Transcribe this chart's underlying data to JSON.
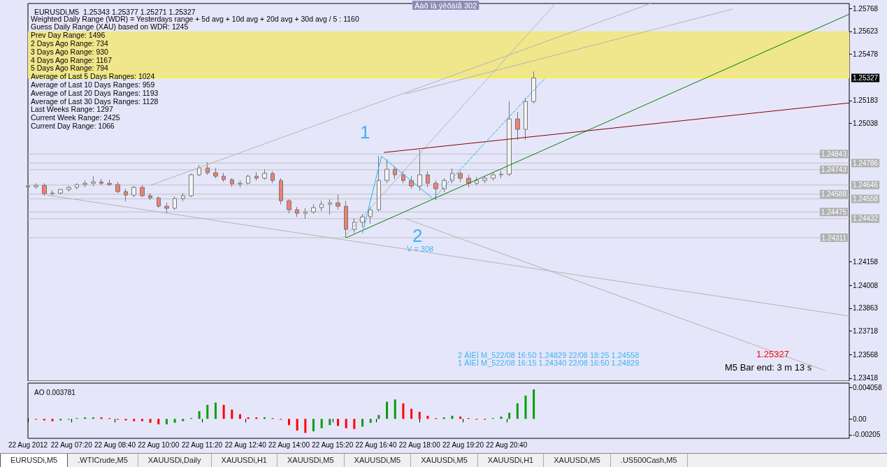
{
  "chart_data": [
    {
      "type": "candlestick",
      "title": "EURUSDi,M5  1.25343 1.25377 1.25271 1.25327",
      "xlim": [
        "2012-08-22T06:00",
        "2012-08-23T07:10"
      ],
      "ylim": [
        1.234,
        1.258
      ],
      "yticks": [
        1.25768,
        1.25623,
        1.25478,
        1.25183,
        1.25038,
        1.24158,
        1.24008,
        1.23863,
        1.23718,
        1.23568,
        1.23418
      ],
      "tick_labels": "y",
      "marker": "none",
      "line_style": "solid",
      "series": [
        {
          "type": "candlestick",
          "x": [
            "2012-08-22T06:00",
            "2012-08-22T06:15",
            "2012-08-22T06:30",
            "2012-08-22T06:45",
            "2012-08-22T07:00",
            "2012-08-22T07:15",
            "2012-08-22T07:30",
            "2012-08-22T07:45",
            "2012-08-22T08:00",
            "2012-08-22T08:15",
            "2012-08-22T08:30",
            "2012-08-22T08:45",
            "2012-08-22T09:00",
            "2012-08-22T09:15",
            "2012-08-22T09:30",
            "2012-08-22T09:45",
            "2012-08-22T10:00",
            "2012-08-22T10:15",
            "2012-08-22T10:30",
            "2012-08-22T10:45",
            "2012-08-22T11:00",
            "2012-08-22T11:15",
            "2012-08-22T11:30",
            "2012-08-22T11:45",
            "2012-08-22T12:00",
            "2012-08-22T12:15",
            "2012-08-22T12:30",
            "2012-08-22T12:45",
            "2012-08-22T13:00",
            "2012-08-22T13:15",
            "2012-08-22T13:30",
            "2012-08-22T13:45",
            "2012-08-22T14:00",
            "2012-08-22T14:15",
            "2012-08-22T14:30",
            "2012-08-22T14:45",
            "2012-08-22T15:00",
            "2012-08-22T15:15",
            "2012-08-22T15:30",
            "2012-08-22T15:45",
            "2012-08-22T16:00",
            "2012-08-22T16:15",
            "2012-08-22T16:30",
            "2012-08-22T16:45",
            "2012-08-22T17:00",
            "2012-08-22T17:15",
            "2012-08-22T17:30",
            "2012-08-22T17:45",
            "2012-08-22T18:00",
            "2012-08-22T18:15",
            "2012-08-22T18:30",
            "2012-08-22T18:45",
            "2012-08-22T19:00",
            "2012-08-22T19:15",
            "2012-08-22T19:30",
            "2012-08-22T19:45",
            "2012-08-22T20:00",
            "2012-08-22T20:15",
            "2012-08-22T20:30",
            "2012-08-22T20:45",
            "2012-08-22T21:00",
            "2012-08-22T21:15",
            "2012-08-22T21:30"
          ],
          "ohlc": [
            [
              1.2464,
              1.24657,
              1.24622,
              1.24635
            ],
            [
              1.24635,
              1.24657,
              1.24622,
              1.24644
            ],
            [
              1.24644,
              1.24657,
              1.24578,
              1.24591
            ],
            [
              1.24591,
              1.24613,
              1.24578,
              1.24595
            ],
            [
              1.24595,
              1.24622,
              1.24586,
              1.24618
            ],
            [
              1.24618,
              1.2464,
              1.24604,
              1.24631
            ],
            [
              1.24631,
              1.24657,
              1.24618,
              1.24649
            ],
            [
              1.24649,
              1.24675,
              1.24631,
              1.24657
            ],
            [
              1.24657,
              1.24702,
              1.2464,
              1.24666
            ],
            [
              1.24666,
              1.24684,
              1.24644,
              1.24657
            ],
            [
              1.24657,
              1.2468,
              1.2464,
              1.24649
            ],
            [
              1.24649,
              1.24666,
              1.24595,
              1.24604
            ],
            [
              1.24604,
              1.24622,
              1.24542,
              1.24582
            ],
            [
              1.24582,
              1.2464,
              1.24569,
              1.24631
            ],
            [
              1.24631,
              1.24644,
              1.24569,
              1.24578
            ],
            [
              1.24578,
              1.24595,
              1.24551,
              1.24564
            ],
            [
              1.24564,
              1.24573,
              1.24502,
              1.24511
            ],
            [
              1.24511,
              1.24533,
              1.24466,
              1.24498
            ],
            [
              1.24498,
              1.24573,
              1.24489,
              1.2456
            ],
            [
              1.2456,
              1.24595,
              1.24542,
              1.24578
            ],
            [
              1.24578,
              1.2472,
              1.24569,
              1.24711
            ],
            [
              1.24711,
              1.24773,
              1.24702,
              1.24755
            ],
            [
              1.24755,
              1.24791,
              1.24711,
              1.24724
            ],
            [
              1.24724,
              1.24755,
              1.24689,
              1.24702
            ],
            [
              1.24702,
              1.24724,
              1.24666,
              1.2468
            ],
            [
              1.2468,
              1.24689,
              1.24635,
              1.24653
            ],
            [
              1.24653,
              1.24675,
              1.24631,
              1.24657
            ],
            [
              1.24657,
              1.24711,
              1.24649,
              1.24702
            ],
            [
              1.24702,
              1.24729,
              1.24675,
              1.24689
            ],
            [
              1.24689,
              1.24746,
              1.2468,
              1.2472
            ],
            [
              1.2472,
              1.24733,
              1.24657,
              1.24675
            ],
            [
              1.24675,
              1.24689,
              1.24524,
              1.24546
            ],
            [
              1.24546,
              1.24555,
              1.24466,
              1.24489
            ],
            [
              1.24489,
              1.24506,
              1.24444,
              1.24466
            ],
            [
              1.24466,
              1.24498,
              1.24431,
              1.24475
            ],
            [
              1.24475,
              1.24524,
              1.24462,
              1.24502
            ],
            [
              1.24502,
              1.24546,
              1.2448,
              1.24524
            ],
            [
              1.24524,
              1.24555,
              1.24458,
              1.24533
            ],
            [
              1.24533,
              1.24586,
              1.24489,
              1.24511
            ],
            [
              1.24511,
              1.24546,
              1.24311,
              1.24364
            ],
            [
              1.24364,
              1.24435,
              1.24342,
              1.24409
            ],
            [
              1.24409,
              1.24462,
              1.24378,
              1.24444
            ],
            [
              1.24444,
              1.24506,
              1.244,
              1.24489
            ],
            [
              1.24489,
              1.24831,
              1.2448,
              1.24675
            ],
            [
              1.24675,
              1.24809,
              1.24657,
              1.24746
            ],
            [
              1.24746,
              1.24764,
              1.24684,
              1.24711
            ],
            [
              1.24711,
              1.24733,
              1.24657,
              1.24675
            ],
            [
              1.24675,
              1.24702,
              1.24622,
              1.2464
            ],
            [
              1.2464,
              1.24871,
              1.24609,
              1.24711
            ],
            [
              1.24711,
              1.24733,
              1.24631,
              1.24657
            ],
            [
              1.24657,
              1.24675,
              1.24551,
              1.24622
            ],
            [
              1.24622,
              1.24689,
              1.246,
              1.24675
            ],
            [
              1.24675,
              1.24751,
              1.24657,
              1.2472
            ],
            [
              1.2472,
              1.24733,
              1.24666,
              1.24689
            ],
            [
              1.24689,
              1.24711,
              1.24631,
              1.24657
            ],
            [
              1.24657,
              1.24697,
              1.24644,
              1.24675
            ],
            [
              1.24675,
              1.24702,
              1.24657,
              1.24689
            ],
            [
              1.24689,
              1.24729,
              1.24675,
              1.24711
            ],
            [
              1.24711,
              1.24737,
              1.24689,
              1.24715
            ],
            [
              1.24715,
              1.25177,
              1.24702,
              1.25066
            ],
            [
              1.25066,
              1.25111,
              1.24933,
              1.25
            ],
            [
              1.25,
              1.25199,
              1.24933,
              1.25177
            ],
            [
              1.25177,
              1.25368,
              1.25164,
              1.25327
            ]
          ]
        },
        {
          "type": "line",
          "color": "#b4b4b4",
          "x": [
            "2012-08-22T09:45",
            "2012-08-23T01:05"
          ],
          "values": [
            1.24644,
            1.258
          ]
        },
        {
          "type": "line",
          "color": "#b4b4b4",
          "x": [
            "2012-08-22T15:40",
            "2012-08-22T22:10"
          ],
          "values": [
            1.24311,
            1.258
          ]
        },
        {
          "type": "line",
          "color": "#b4b4b4",
          "x": [
            "2012-08-22T17:35",
            "2012-08-23T03:35"
          ],
          "values": [
            1.25226,
            1.25764
          ]
        },
        {
          "type": "line",
          "color": "#b4b4b4",
          "x": [
            "2012-08-22T06:35",
            "2012-08-23T07:10"
          ],
          "values": [
            1.24582,
            1.23813
          ]
        },
        {
          "type": "line",
          "color": "#b4b4b4",
          "x": [
            "2012-08-22T17:35",
            "2012-08-23T06:25"
          ],
          "values": [
            1.24431,
            1.23467
          ]
        },
        {
          "type": "line",
          "color": "#008000",
          "x": [
            "2012-08-22T15:45",
            "2012-08-23T07:10"
          ],
          "values": [
            1.24311,
            1.25732
          ]
        },
        {
          "type": "line",
          "color": "#800000",
          "x": [
            "2012-08-22T16:55",
            "2012-08-23T07:10"
          ],
          "values": [
            1.24853,
            1.25168
          ]
        },
        {
          "type": "line",
          "color": "#1eb4f0",
          "x": [
            "2012-08-22T16:15",
            "2012-08-22T16:50",
            "2012-08-22T18:25"
          ],
          "values": [
            1.2434,
            1.24829,
            1.24558
          ]
        },
        {
          "type": "line",
          "color": "#1eb4f0",
          "line_style": "dashed",
          "x": [
            "2012-08-22T18:25",
            "2012-08-22T21:50"
          ],
          "values": [
            1.24558,
            1.25323
          ]
        }
      ],
      "ref_lines": [
        {
          "axis": "y",
          "value": 1.25327,
          "label": "1.25327",
          "color": "#ffff00"
        },
        {
          "axis": "y",
          "value": 1.24843,
          "label": "1.24843",
          "color": "#c0c0c0"
        },
        {
          "axis": "y",
          "value": 1.24786,
          "label": "1.24786",
          "color": "#c0c0c0"
        },
        {
          "axis": "y",
          "value": 1.24743,
          "label": "1.24743",
          "color": "#c0c0c0"
        },
        {
          "axis": "y",
          "value": 1.24646,
          "label": "1.24646",
          "color": "#c0c0c0"
        },
        {
          "axis": "y",
          "value": 1.24588,
          "label": "1.24588",
          "color": "#c0c0c0"
        },
        {
          "axis": "y",
          "value": 1.24558,
          "label": "1.24558",
          "color": "#c0c0c0"
        },
        {
          "axis": "y",
          "value": 1.24475,
          "label": "1.24475",
          "color": "#c0c0c0"
        },
        {
          "axis": "y",
          "value": 1.24432,
          "label": "1.24432",
          "color": "#c0c0c0"
        },
        {
          "axis": "y",
          "value": 1.24311,
          "label": "1.24311",
          "color": "#c0c0c0"
        }
      ],
      "bands": [
        {
          "axis": "y",
          "from": 1.25327,
          "to": 1.25623,
          "color": "#f0e68c"
        }
      ],
      "annotations": [
        "Weighted Daily Range (WDR) = Yesterdays range + 5d avg + 10d avg + 20d avg + 30d avg / 5 : 1160",
        "Guess Daily Range (XAU) based on WDR: 1245",
        "Prev Day Range: 1496",
        "2 Days Ago Range: 734",
        "3 Days Ago Range: 930",
        "4 Days Ago Range: 1167",
        "5 Days Ago Range: 794",
        "Average of Last 5 Days Ranges: 1024",
        "Average of Last 10 Days Ranges: 959",
        "Average of Last 20 Days Ranges: 1193",
        "Average of Last 30 Days Ranges: 1128",
        "Last Weeks Range: 1297",
        "Current Week Range: 2425",
        "Current Day Range: 1066",
        "Áàð íà ýêðàíå 302",
        "2 ÂÌËÌ M_522/08 16:50 1.24829 22/08 18:25 1.24558",
        "1 ÂÌËÌ M_522/08 16:15 1.24340 22/08 16:50 1.24829",
        "1.25327",
        "M5 Bar end: 3 m 13 s",
        "1",
        "2",
        "V = 308"
      ]
    },
    {
      "type": "bar",
      "title": "AO 0.003781",
      "xlim": [
        "2012-08-22T06:00",
        "2012-08-23T07:10"
      ],
      "ylim": [
        -0.0025,
        0.0046
      ],
      "xticks": [
        {
          "value": "2012-08-22T06:00",
          "label": "22 Aug 2012"
        },
        {
          "value": "2012-08-22T07:20",
          "label": "22 Aug 07:20"
        },
        {
          "value": "2012-08-22T08:40",
          "label": "22 Aug 08:40"
        },
        {
          "value": "2012-08-22T10:00",
          "label": "22 Aug 10:00"
        },
        {
          "value": "2012-08-22T11:20",
          "label": "22 Aug 11:20"
        },
        {
          "value": "2012-08-22T12:40",
          "label": "22 Aug 12:40"
        },
        {
          "value": "2012-08-22T14:00",
          "label": "22 Aug 14:00"
        },
        {
          "value": "2012-08-22T15:20",
          "label": "22 Aug 15:20"
        },
        {
          "value": "2012-08-22T16:40",
          "label": "22 Aug 16:40"
        },
        {
          "value": "2012-08-22T18:00",
          "label": "22 Aug 18:00"
        },
        {
          "value": "2012-08-22T19:20",
          "label": "22 Aug 19:20"
        },
        {
          "value": "2012-08-22T20:40",
          "label": "22 Aug 20:40"
        }
      ],
      "yticks": [
        0.004058,
        {
          "value": 0,
          "label": "0.00"
        },
        -0.00205
      ],
      "x": [
        "2012-08-22T06:00",
        "2012-08-22T06:15",
        "2012-08-22T06:30",
        "2012-08-22T06:45",
        "2012-08-22T07:00",
        "2012-08-22T07:15",
        "2012-08-22T07:30",
        "2012-08-22T07:45",
        "2012-08-22T08:00",
        "2012-08-22T08:15",
        "2012-08-22T08:30",
        "2012-08-22T08:45",
        "2012-08-22T09:00",
        "2012-08-22T09:15",
        "2012-08-22T09:30",
        "2012-08-22T09:45",
        "2012-08-22T10:00",
        "2012-08-22T10:15",
        "2012-08-22T10:30",
        "2012-08-22T10:45",
        "2012-08-22T11:00",
        "2012-08-22T11:15",
        "2012-08-22T11:30",
        "2012-08-22T11:45",
        "2012-08-22T12:00",
        "2012-08-22T12:15",
        "2012-08-22T12:30",
        "2012-08-22T12:45",
        "2012-08-22T13:00",
        "2012-08-22T13:15",
        "2012-08-22T13:30",
        "2012-08-22T13:45",
        "2012-08-22T14:00",
        "2012-08-22T14:15",
        "2012-08-22T14:30",
        "2012-08-22T14:45",
        "2012-08-22T15:00",
        "2012-08-22T15:15",
        "2012-08-22T15:30",
        "2012-08-22T15:45",
        "2012-08-22T16:00",
        "2012-08-22T16:15",
        "2012-08-22T16:30",
        "2012-08-22T16:45",
        "2012-08-22T17:00",
        "2012-08-22T17:15",
        "2012-08-22T17:30",
        "2012-08-22T17:45",
        "2012-08-22T18:00",
        "2012-08-22T18:15",
        "2012-08-22T18:30",
        "2012-08-22T18:45",
        "2012-08-22T19:00",
        "2012-08-22T19:15",
        "2012-08-22T19:30",
        "2012-08-22T19:45",
        "2012-08-22T20:00",
        "2012-08-22T20:15",
        "2012-08-22T20:30",
        "2012-08-22T20:45",
        "2012-08-22T21:00",
        "2012-08-22T21:15",
        "2012-08-22T21:30"
      ],
      "values": [
        0.0001,
        -0.0001,
        -0.0002,
        -0.0003,
        -0.0002,
        -0.0001,
        0.0001,
        0.0002,
        0.0002,
        0.0002,
        0.0001,
        -0.0001,
        -0.0002,
        -0.0003,
        -0.0003,
        -0.0005,
        -0.0007,
        -0.0007,
        -0.0005,
        -0.0003,
        0.0001,
        0.001,
        0.0018,
        0.0021,
        0.0018,
        0.0012,
        0.0006,
        0.0002,
        0.0002,
        0.0002,
        0.0001,
        -0.0001,
        -0.0008,
        -0.0015,
        -0.0018,
        -0.0016,
        -0.0012,
        -0.0008,
        -0.0009,
        -0.0012,
        -0.0013,
        -0.001,
        -0.0005,
        0.0005,
        0.0022,
        0.0025,
        0.002,
        0.0013,
        0.0009,
        0.0004,
        0.0001,
        0.0002,
        0.0004,
        0.0003,
        0.0001,
        -0.0001,
        -0.0001,
        0.0001,
        0.0003,
        0.0008,
        0.002,
        0.003,
        0.0038
      ],
      "colors": [
        "#00a000",
        "#ff0000",
        "#ff0000",
        "#ff0000",
        "#00a000",
        "#00a000",
        "#00a000",
        "#00a000",
        "#00a000",
        "#ff0000",
        "#ff0000",
        "#ff0000",
        "#ff0000",
        "#ff0000",
        "#ff0000",
        "#ff0000",
        "#ff0000",
        "#00a000",
        "#00a000",
        "#00a000",
        "#00a000",
        "#00a000",
        "#00a000",
        "#00a000",
        "#ff0000",
        "#ff0000",
        "#ff0000",
        "#ff0000",
        "#ff0000",
        "#00a000",
        "#ff0000",
        "#ff0000",
        "#ff0000",
        "#ff0000",
        "#ff0000",
        "#00a000",
        "#00a000",
        "#00a000",
        "#ff0000",
        "#ff0000",
        "#ff0000",
        "#00a000",
        "#00a000",
        "#00a000",
        "#00a000",
        "#00a000",
        "#ff0000",
        "#ff0000",
        "#ff0000",
        "#ff0000",
        "#ff0000",
        "#00a000",
        "#00a000",
        "#ff0000",
        "#ff0000",
        "#ff0000",
        "#ff0000",
        "#00a000",
        "#00a000",
        "#00a000",
        "#00a000",
        "#00a000",
        "#00a000"
      ],
      "annotations": [
        "EURUSDi,M5",
        ".WTICrude,M5",
        "XAUUSDi,Daily",
        "XAUUSDi,H1",
        "XAUUSDi,M5",
        "XAUUSDi,M5",
        "XAUUSDi,M5",
        "XAUUSDi,H1",
        "XAUUSDi,M5",
        ".US500Cash,M5"
      ]
    }
  ]
}
